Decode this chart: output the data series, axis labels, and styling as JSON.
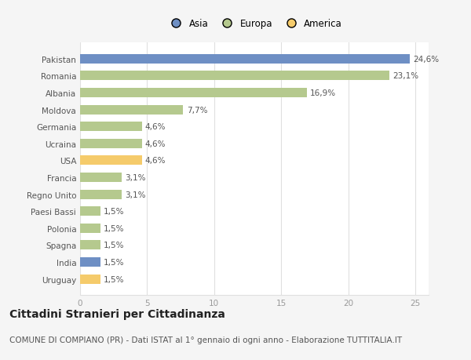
{
  "categories": [
    "Pakistan",
    "Romania",
    "Albania",
    "Moldova",
    "Germania",
    "Ucraina",
    "USA",
    "Francia",
    "Regno Unito",
    "Paesi Bassi",
    "Polonia",
    "Spagna",
    "India",
    "Uruguay"
  ],
  "values": [
    24.6,
    23.1,
    16.9,
    7.7,
    4.6,
    4.6,
    4.6,
    3.1,
    3.1,
    1.5,
    1.5,
    1.5,
    1.5,
    1.5
  ],
  "colors": [
    "#6e8fc4",
    "#b5c98e",
    "#b5c98e",
    "#b5c98e",
    "#b5c98e",
    "#b5c98e",
    "#f5cb6b",
    "#b5c98e",
    "#b5c98e",
    "#b5c98e",
    "#b5c98e",
    "#b5c98e",
    "#6e8fc4",
    "#f5cb6b"
  ],
  "labels": [
    "24,6%",
    "23,1%",
    "16,9%",
    "7,7%",
    "4,6%",
    "4,6%",
    "4,6%",
    "3,1%",
    "3,1%",
    "1,5%",
    "1,5%",
    "1,5%",
    "1,5%",
    "1,5%"
  ],
  "legend": [
    {
      "label": "Asia",
      "color": "#6e8fc4"
    },
    {
      "label": "Europa",
      "color": "#b5c98e"
    },
    {
      "label": "America",
      "color": "#f5cb6b"
    }
  ],
  "xlim": [
    0,
    26
  ],
  "xticks": [
    0,
    5,
    10,
    15,
    20,
    25
  ],
  "title": "Cittadini Stranieri per Cittadinanza",
  "subtitle": "COMUNE DI COMPIANO (PR) - Dati ISTAT al 1° gennaio di ogni anno - Elaborazione TUTTITALIA.IT",
  "background_color": "#f5f5f5",
  "plot_bg_color": "#ffffff",
  "grid_color": "#e0e0e0",
  "bar_height": 0.55,
  "title_fontsize": 10,
  "subtitle_fontsize": 7.5,
  "tick_fontsize": 7.5,
  "value_fontsize": 7.5,
  "legend_fontsize": 8.5
}
